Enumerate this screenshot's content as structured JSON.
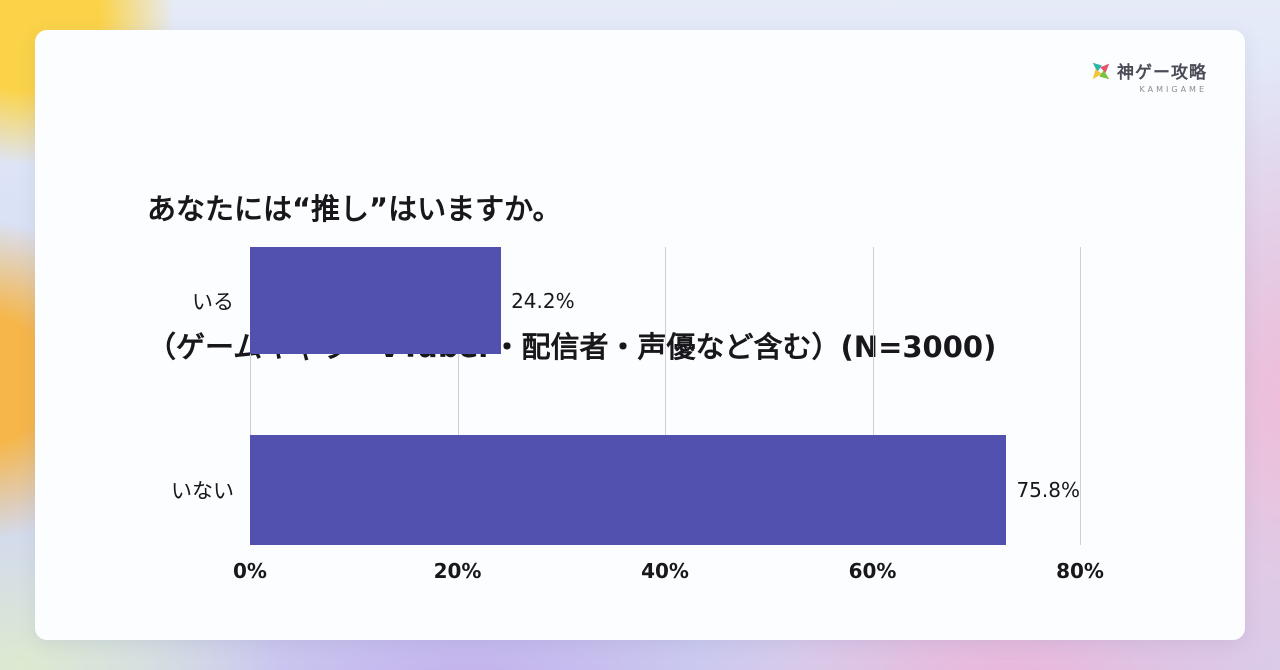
{
  "logo": {
    "brand": "神ゲー攻略",
    "sub": "KAMIGAME"
  },
  "title": {
    "line1": "あなたには“推し”はいますか。",
    "line2": "（ゲームキャラ・VTuber・配信者・声優など含む）(N=3000)"
  },
  "chart_data": {
    "type": "bar",
    "orientation": "horizontal",
    "title": "あなたには“推し”はいますか。（ゲームキャラ・VTuber・配信者・声優など含む）(N=3000)",
    "categories": [
      "いる",
      "いない"
    ],
    "values": [
      24.2,
      75.8
    ],
    "value_labels": [
      "24.2%",
      "75.8%"
    ],
    "x_ticks": [
      "0%",
      "20%",
      "40%",
      "60%",
      "80%"
    ],
    "xlim": [
      0,
      80
    ],
    "bar_color": "#5351b0",
    "grid": true,
    "legend": "none"
  }
}
